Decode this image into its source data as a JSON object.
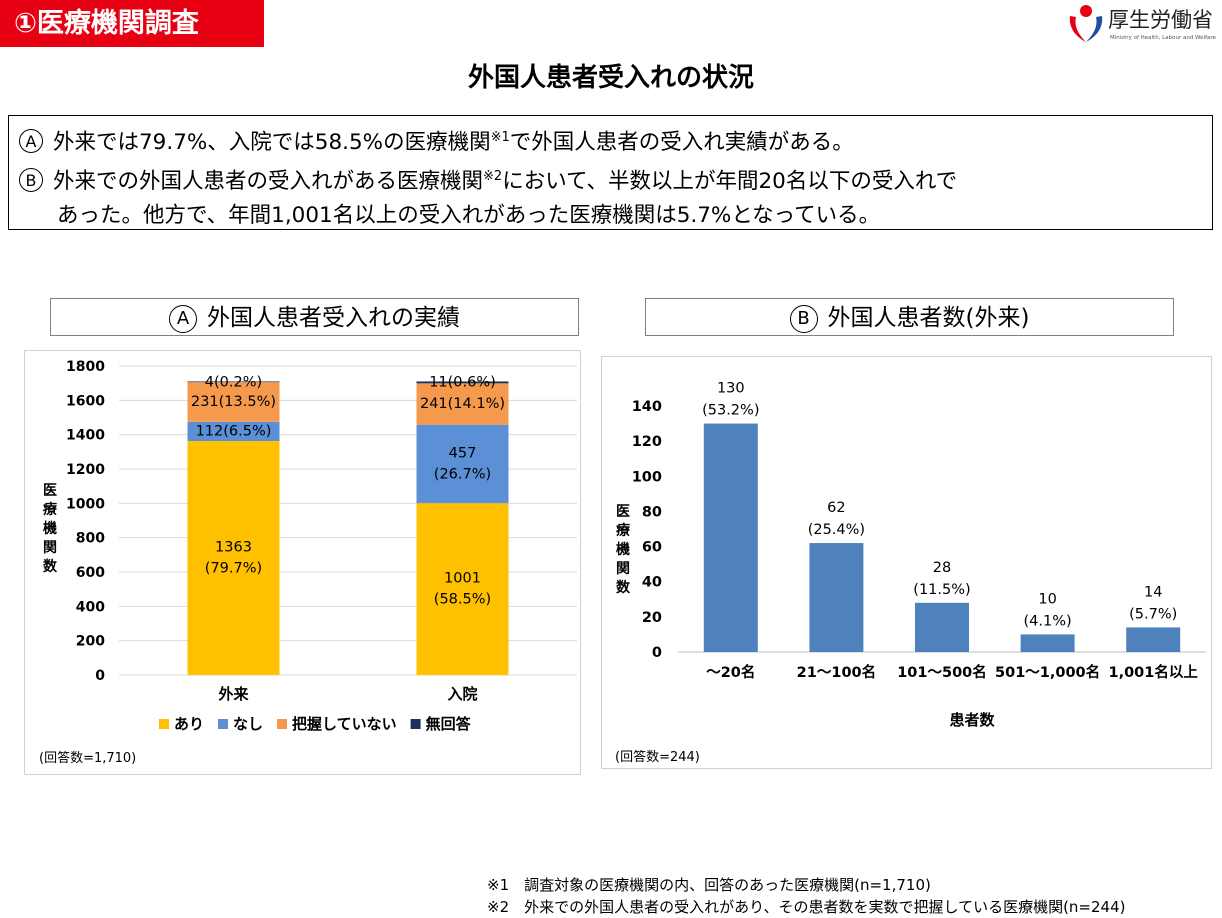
{
  "header": {
    "badge": "①医療機関調査",
    "logo_name": "厚生労働省",
    "logo_sub": "Ministry of Health, Labour and Welfare",
    "title": "外国人患者受入れの状況"
  },
  "summary": {
    "a_marker": "A",
    "a_text_1": "外来では79.7%、入院では58.5%の医療機関",
    "a_sup": "※1",
    "a_text_2": "で外国人患者の受入れ実績がある。",
    "b_marker": "B",
    "b_text_1": "外来での外国人患者の受入れがある医療機関",
    "b_sup": "※2",
    "b_text_2": "において、半数以上が年間20名以下の受入れで",
    "b_text_3": "あった。他方で、年間1,001名以上の受入れがあった医療機関は5.7%となっている。"
  },
  "chart_a_header": {
    "marker": "A",
    "label": "外国人患者受入れの実績"
  },
  "chart_b_header": {
    "marker": "B",
    "label": "外国人患者数(外来)"
  },
  "chart_data": [
    {
      "type": "bar",
      "stacked": true,
      "categories": [
        "外来",
        "入院"
      ],
      "ylabel": "医療機関数",
      "ylim": [
        0,
        1800
      ],
      "yticks": [
        "0",
        "200",
        "400",
        "600",
        "800",
        "1000",
        "1200",
        "1400",
        "1600",
        "1800"
      ],
      "grid": true,
      "legend_position": "bottom",
      "series": [
        {
          "name": "あり",
          "color": "#ffc000",
          "values": [
            1363,
            1001
          ],
          "labels": [
            "1363\n(79.7%)",
            "1001\n(58.5%)"
          ]
        },
        {
          "name": "なし",
          "color": "#5b8fd6",
          "values": [
            112,
            457
          ],
          "labels": [
            "112(6.5%)",
            "457\n(26.7%)"
          ]
        },
        {
          "name": "把握していない",
          "color": "#f59a4d",
          "values": [
            231,
            241
          ],
          "labels": [
            "231(13.5%)",
            "241(14.1%)"
          ]
        },
        {
          "name": "無回答",
          "color": "#1f2e5c",
          "values": [
            4,
            11
          ],
          "labels": [
            "4(0.2%)",
            "11(0.6%)"
          ]
        }
      ],
      "note": "(回答数=1,710)"
    },
    {
      "type": "bar",
      "categories": [
        "～20名",
        "21～100名",
        "101～500名",
        "501～1,000名",
        "1,001名以上"
      ],
      "values": [
        130,
        62,
        28,
        10,
        14
      ],
      "labels": [
        "130\n(53.2%)",
        "62\n(25.4%)",
        "28\n(11.5%)",
        "10\n(4.1%)",
        "14\n(5.7%)"
      ],
      "color": "#4f81bd",
      "xlabel": "患者数",
      "ylabel": "医療機関数",
      "ylim": [
        0,
        140
      ],
      "yticks": [
        "0",
        "20",
        "40",
        "60",
        "80",
        "100",
        "120",
        "140"
      ],
      "grid": false,
      "note": "(回答数=244)"
    }
  ],
  "footnotes": [
    "※1　調査対象の医療機関の内、回答のあった医療機関(n=1,710)",
    "※2　外来での外国人患者の受入れがあり、その患者数を実数で把握している医療機関(n=244)"
  ],
  "colors": {
    "badge": "#e60012",
    "logo_red": "#e60012",
    "logo_blue": "#1d4fa1"
  }
}
